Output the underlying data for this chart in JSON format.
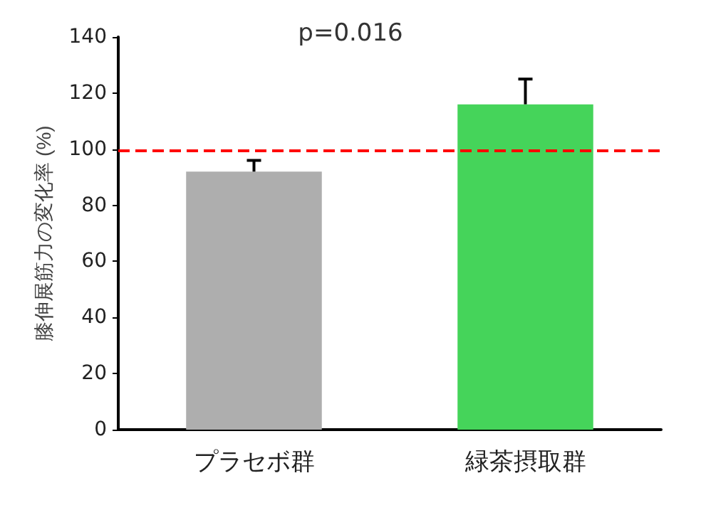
{
  "chart_data": {
    "type": "bar",
    "categories": [
      "プラセボ群",
      "緑茶摂取群"
    ],
    "values": [
      92,
      116
    ],
    "colors": [
      "#aeaeae",
      "#45d45a"
    ],
    "errors": [
      [
        92,
        96
      ],
      [
        116,
        125
      ]
    ],
    "ylabel": "膝伸展筋力の変化率 (%)",
    "ylim": [
      0,
      140
    ],
    "yticks": [
      0,
      20,
      40,
      60,
      80,
      100,
      120,
      140
    ],
    "grid": false,
    "ref_lines": [
      {
        "axis": "y",
        "value": 99.5,
        "color": "#ff0000",
        "line_style": "dashed"
      }
    ],
    "annotations": [
      "p=0.016"
    ]
  }
}
